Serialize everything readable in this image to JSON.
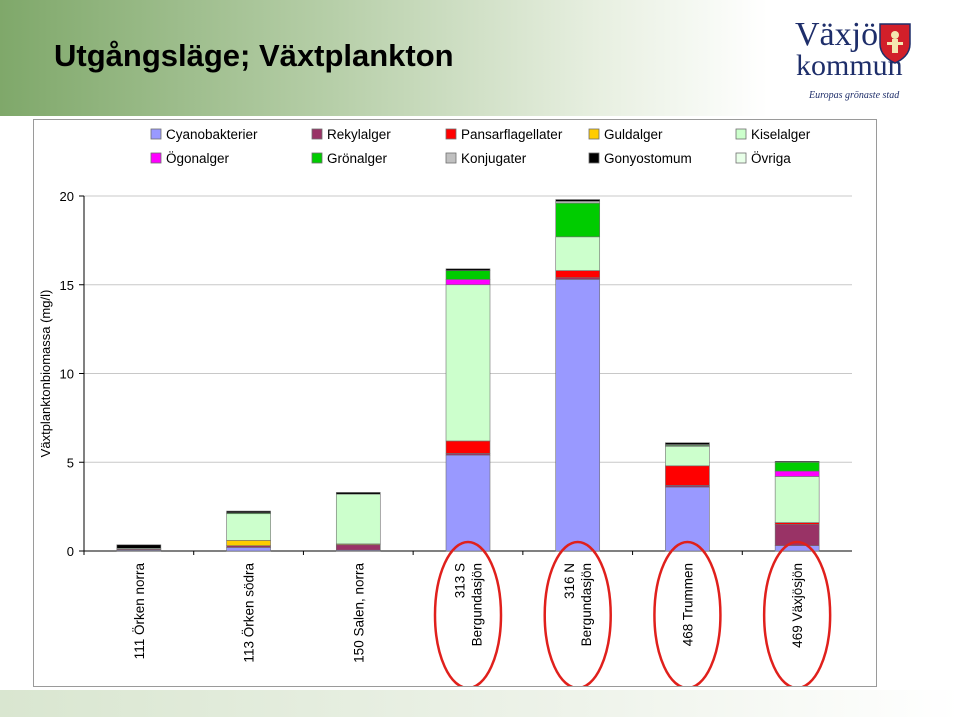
{
  "slide": {
    "title": "Utgångsläge; Växtplankton"
  },
  "logo": {
    "line1": "Växjö",
    "line2": "kommun",
    "tagline": "Europas grönaste stad"
  },
  "colors": {
    "header_green": "#7fa86a",
    "logo_blue": "#1e2e6a",
    "highlight_red": "#e0201c"
  },
  "chart_data": {
    "type": "bar",
    "stacked": true,
    "title": "",
    "ylabel": "Växtplanktonbiomassa (mg/l)",
    "xlabel": "",
    "ylim": [
      0,
      20
    ],
    "yticks": [
      0,
      5,
      10,
      15,
      20
    ],
    "grid": "horizontal",
    "legend_position": "top",
    "categories": [
      "111 Örken norra",
      "113 Örken södra",
      "150 Salen, norra",
      "313 S Bergundasjön",
      "316 N Bergundasjön",
      "468 Trummen",
      "469 Växjösjön"
    ],
    "highlighted_categories": [
      "313 S Bergundasjön",
      "316 N Bergundasjön",
      "468 Trummen",
      "469 Växjösjön"
    ],
    "series": [
      {
        "name": "Cyanobakterier",
        "color": "#9999ff",
        "values": [
          0.05,
          0.2,
          0.05,
          5.4,
          15.3,
          3.6,
          0.3
        ]
      },
      {
        "name": "Rekylalger",
        "color": "#993366",
        "values": [
          0.05,
          0.1,
          0.3,
          0.1,
          0.1,
          0.1,
          1.2
        ]
      },
      {
        "name": "Pansarflagellater",
        "color": "#ff0000",
        "values": [
          0.0,
          0.0,
          0.0,
          0.7,
          0.4,
          1.1,
          0.1
        ]
      },
      {
        "name": "Guldalger",
        "color": "#ffcc00",
        "values": [
          0.0,
          0.3,
          0.05,
          0.0,
          0.0,
          0.0,
          0.0
        ]
      },
      {
        "name": "Kiselalger",
        "color": "#ccffcc",
        "values": [
          0.05,
          1.5,
          2.8,
          8.8,
          1.9,
          1.1,
          2.6
        ]
      },
      {
        "name": "Ögonalger",
        "color": "#ff00ff",
        "values": [
          0.0,
          0.0,
          0.0,
          0.3,
          0.0,
          0.0,
          0.3
        ]
      },
      {
        "name": "Grönalger",
        "color": "#00cc00",
        "values": [
          0.0,
          0.05,
          0.0,
          0.5,
          1.9,
          0.05,
          0.5
        ]
      },
      {
        "name": "Konjugater",
        "color": "#c0c0c0",
        "values": [
          0.0,
          0.0,
          0.0,
          0.0,
          0.1,
          0.05,
          0.0
        ]
      },
      {
        "name": "Gonyostomum",
        "color": "#000000",
        "values": [
          0.2,
          0.1,
          0.1,
          0.1,
          0.1,
          0.1,
          0.05
        ]
      },
      {
        "name": "Övriga",
        "color": "#e8ffe8",
        "values": [
          0.0,
          0.0,
          0.0,
          0.0,
          0.0,
          0.0,
          0.0
        ]
      }
    ]
  }
}
